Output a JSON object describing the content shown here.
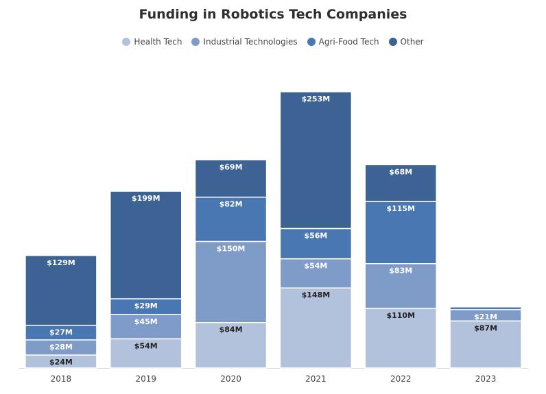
{
  "chart_data": {
    "type": "bar",
    "stacked": true,
    "title": "Funding in Robotics Tech Companies",
    "categories": [
      "2018",
      "2019",
      "2020",
      "2021",
      "2022",
      "2023"
    ],
    "series": [
      {
        "name": "Health Tech",
        "color": "#b3c2dc",
        "label_color": "#222222",
        "values": [
          24,
          54,
          84,
          148,
          110,
          87
        ],
        "labels": [
          "$24M",
          "$54M",
          "$84M",
          "$148M",
          "$110M",
          "$87M"
        ]
      },
      {
        "name": "Industrial Technologies",
        "color": "#7f9bc8",
        "label_color": "#ffffff",
        "values": [
          28,
          45,
          150,
          54,
          83,
          21
        ],
        "labels": [
          "$28M",
          "$45M",
          "$150M",
          "$54M",
          "$83M",
          "$21M"
        ]
      },
      {
        "name": "Agri-Food Tech",
        "color": "#4877b1",
        "label_color": "#ffffff",
        "values": [
          27,
          29,
          82,
          56,
          115,
          5
        ],
        "labels": [
          "$27M",
          "$29M",
          "$82M",
          "$56M",
          "$115M",
          ""
        ]
      },
      {
        "name": "Other",
        "color": "#3c6394",
        "label_color": "#ffffff",
        "values": [
          129,
          199,
          69,
          253,
          68,
          0
        ],
        "labels": [
          "$129M",
          "$199M",
          "$69M",
          "$253M",
          "$68M",
          ""
        ]
      }
    ],
    "ylim": [
      0,
      540
    ],
    "legend": "top-center",
    "grid": false
  }
}
